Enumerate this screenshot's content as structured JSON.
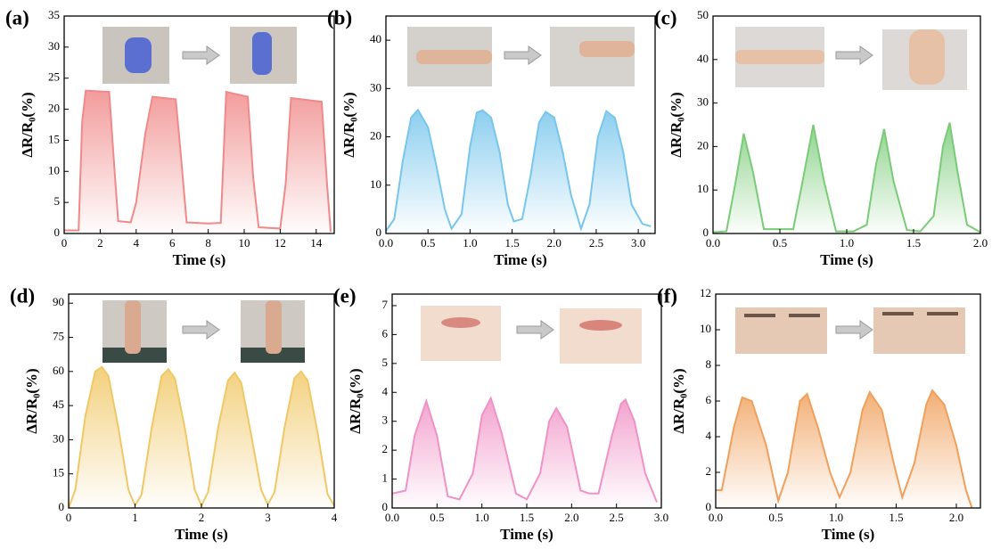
{
  "chart_data": [
    {
      "type": "line",
      "label": "(a)",
      "xlabel": "Time (s)",
      "ylabel": "ΔR/R₀(%)",
      "color": "#f08a8a",
      "x": [
        0,
        0.8,
        1.0,
        1.2,
        2.5,
        2.8,
        3.0,
        3.7,
        4.0,
        4.5,
        4.9,
        6.2,
        6.5,
        6.8,
        8.0,
        8.7,
        9.0,
        10.2,
        10.5,
        10.8,
        12.0,
        12.3,
        12.6,
        14.3,
        14.6,
        14.8
      ],
      "values": [
        0.5,
        0.5,
        18,
        23,
        22.8,
        10,
        2,
        1.8,
        5,
        16,
        22,
        21.6,
        12,
        1.8,
        1.6,
        1.7,
        22.8,
        22,
        9,
        1,
        0.8,
        8,
        21.8,
        21.2,
        8,
        0.3
      ],
      "xlim": [
        0,
        15
      ],
      "xticks": [
        0,
        2,
        4,
        6,
        8,
        10,
        12,
        14
      ],
      "ylim": [
        0,
        35
      ],
      "yticks": [
        0,
        5,
        10,
        15,
        20,
        25,
        30,
        35
      ]
    },
    {
      "type": "line",
      "label": "(b)",
      "xlabel": "Time (s)",
      "ylabel": "ΔR/R₀(%)",
      "color": "#78c6ec",
      "x": [
        0,
        0.1,
        0.2,
        0.3,
        0.38,
        0.5,
        0.6,
        0.7,
        0.78,
        0.9,
        1.0,
        1.08,
        1.15,
        1.25,
        1.35,
        1.45,
        1.52,
        1.62,
        1.72,
        1.82,
        1.9,
        2.0,
        2.1,
        2.2,
        2.32,
        2.42,
        2.52,
        2.62,
        2.72,
        2.82,
        2.92,
        3.05,
        3.15
      ],
      "values": [
        0.5,
        3,
        15,
        24,
        25.6,
        22,
        14,
        5,
        1,
        4,
        18,
        25,
        25.5,
        24,
        17,
        6,
        2.5,
        3,
        12,
        23,
        25.2,
        24,
        17,
        8,
        1,
        6,
        20,
        25.3,
        24,
        17,
        6,
        2,
        1.5
      ],
      "xlim": [
        0,
        3.2
      ],
      "xticks": [
        {
          "value": 0,
          "label": "0.0"
        },
        {
          "value": 0.5,
          "label": "0.5"
        },
        {
          "value": 1,
          "label": "1.0"
        },
        {
          "value": 1.5,
          "label": "1.5"
        },
        {
          "value": 2,
          "label": "2.0"
        },
        {
          "value": 2.5,
          "label": "2.5"
        },
        {
          "value": 3,
          "label": "3.0"
        }
      ],
      "ylim": [
        0,
        45
      ],
      "yticks": [
        0,
        10,
        20,
        30,
        40
      ]
    },
    {
      "type": "line",
      "label": "(c)",
      "xlabel": "Time (s)",
      "ylabel": "ΔR/R₀(%)",
      "color": "#7acb78",
      "x": [
        0,
        0.1,
        0.17,
        0.23,
        0.3,
        0.38,
        0.5,
        0.6,
        0.67,
        0.75,
        0.83,
        0.92,
        1.05,
        1.15,
        1.22,
        1.28,
        1.35,
        1.45,
        1.55,
        1.65,
        1.72,
        1.77,
        1.83,
        1.9,
        2.0
      ],
      "values": [
        0.3,
        0.5,
        12,
        23,
        14,
        1,
        1,
        1,
        12,
        25,
        12,
        0.5,
        0.5,
        2,
        16,
        24,
        12,
        0.8,
        0.5,
        4,
        20,
        25.5,
        14,
        2,
        0.3
      ],
      "xlim": [
        0,
        2.0
      ],
      "xticks": [
        {
          "value": 0,
          "label": "0.0"
        },
        {
          "value": 0.5,
          "label": "0.5"
        },
        {
          "value": 1,
          "label": "1.0"
        },
        {
          "value": 1.5,
          "label": "1.5"
        },
        {
          "value": 2,
          "label": "2.0"
        }
      ],
      "ylim": [
        0,
        50
      ],
      "yticks": [
        0,
        10,
        20,
        30,
        40,
        50
      ]
    },
    {
      "type": "line",
      "label": "(d)",
      "xlabel": "Time (s)",
      "ylabel": "ΔR/R₀(%)",
      "color": "#f0c866",
      "x": [
        0,
        0.1,
        0.25,
        0.4,
        0.5,
        0.6,
        0.75,
        0.9,
        1.0,
        1.1,
        1.25,
        1.4,
        1.5,
        1.6,
        1.75,
        1.9,
        2.0,
        2.1,
        2.25,
        2.4,
        2.5,
        2.6,
        2.75,
        2.9,
        3.0,
        3.1,
        3.25,
        3.4,
        3.5,
        3.6,
        3.75,
        3.9,
        4.0
      ],
      "values": [
        0,
        8,
        40,
        60,
        62,
        58,
        35,
        8,
        1,
        6,
        35,
        58,
        61,
        57,
        35,
        8,
        1,
        7,
        35,
        56,
        59.5,
        55,
        32,
        8,
        1.5,
        7,
        35,
        57,
        60,
        56,
        33,
        6,
        1
      ],
      "xlim": [
        0,
        4
      ],
      "xticks": [
        0,
        1,
        2,
        3,
        4
      ],
      "ylim": [
        0,
        94
      ],
      "yticks": [
        0,
        15,
        30,
        45,
        60,
        75,
        90
      ]
    },
    {
      "type": "line",
      "label": "(e)",
      "xlabel": "Time (s)",
      "ylabel": "ΔR/R₀(%)",
      "color": "#f092c6",
      "x": [
        0,
        0.15,
        0.25,
        0.38,
        0.5,
        0.62,
        0.75,
        0.9,
        1.0,
        1.1,
        1.22,
        1.38,
        1.5,
        1.65,
        1.75,
        1.83,
        1.95,
        2.1,
        2.2,
        2.3,
        2.45,
        2.55,
        2.6,
        2.7,
        2.82,
        2.95
      ],
      "values": [
        0.5,
        0.6,
        2.5,
        3.7,
        2.5,
        0.4,
        0.3,
        1.2,
        3.2,
        3.8,
        2.6,
        0.5,
        0.3,
        1.2,
        3,
        3.45,
        2.8,
        0.6,
        0.5,
        0.5,
        2.5,
        3.6,
        3.75,
        3,
        1.2,
        0.2
      ],
      "xlim": [
        0,
        3.0
      ],
      "xticks": [
        {
          "value": 0,
          "label": "0.0"
        },
        {
          "value": 0.5,
          "label": "0.5"
        },
        {
          "value": 1,
          "label": "1.0"
        },
        {
          "value": 1.5,
          "label": "1.5"
        },
        {
          "value": 2,
          "label": "2.0"
        },
        {
          "value": 2.5,
          "label": "2.5"
        },
        {
          "value": 3,
          "label": "3.0"
        }
      ],
      "ylim": [
        0,
        7.4
      ],
      "yticks": [
        0,
        1,
        2,
        3,
        4,
        5,
        6,
        7
      ]
    },
    {
      "type": "line",
      "label": "(f)",
      "xlabel": "Time (s)",
      "ylabel": "ΔR/R₀(%)",
      "color": "#f0a05c",
      "x": [
        0,
        0.05,
        0.15,
        0.22,
        0.3,
        0.42,
        0.52,
        0.6,
        0.7,
        0.76,
        0.85,
        0.95,
        1.03,
        1.12,
        1.22,
        1.28,
        1.38,
        1.48,
        1.55,
        1.65,
        1.75,
        1.8,
        1.9,
        2.0,
        2.08,
        2.13
      ],
      "values": [
        1,
        1,
        4.5,
        6.2,
        6,
        3.5,
        0.4,
        2,
        6,
        6.4,
        4.5,
        2,
        0.6,
        2,
        5.5,
        6.5,
        5.5,
        2.5,
        0.6,
        2.5,
        5.8,
        6.6,
        5.8,
        3.5,
        1,
        0
      ],
      "xlim": [
        0,
        2.2
      ],
      "xticks": [
        {
          "value": 0,
          "label": "0.0"
        },
        {
          "value": 0.5,
          "label": "0.5"
        },
        {
          "value": 1,
          "label": "1.0"
        },
        {
          "value": 1.5,
          "label": "1.5"
        },
        {
          "value": 2,
          "label": "2.0"
        }
      ],
      "ylim": [
        0,
        12
      ],
      "yticks": [
        0,
        2,
        4,
        6,
        8,
        10,
        12
      ]
    }
  ]
}
